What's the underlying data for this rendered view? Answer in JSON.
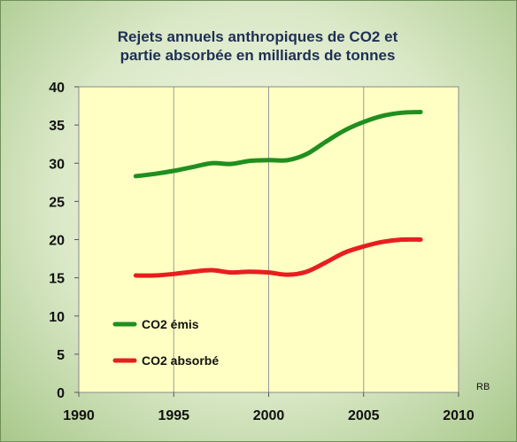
{
  "chart_data": {
    "type": "line",
    "title": [
      "Rejets annuels anthropiques  de CO2 et",
      "partie absorbée en milliards de tonnes"
    ],
    "xlabel": "",
    "ylabel": "",
    "xlim": [
      1990,
      2010
    ],
    "ylim": [
      0,
      40
    ],
    "x_ticks": [
      "1990",
      "1995",
      "2000",
      "2005",
      "2010"
    ],
    "y_ticks": [
      "0",
      "5",
      "10",
      "15",
      "20",
      "25",
      "30",
      "35",
      "40"
    ],
    "grid": "vertical",
    "legend_position": "lower-left",
    "x": [
      1993,
      1994,
      1995,
      1996,
      1997,
      1998,
      1999,
      2000,
      2001,
      2002,
      2003,
      2004,
      2005,
      2006,
      2007,
      2008
    ],
    "series": [
      {
        "name": "CO2 émis",
        "color": "#1f8f1f",
        "values": [
          28.3,
          28.6,
          29.0,
          29.5,
          30.0,
          29.9,
          30.3,
          30.4,
          30.4,
          31.2,
          32.8,
          34.3,
          35.4,
          36.2,
          36.6,
          36.7
        ]
      },
      {
        "name": "CO2 absorbé",
        "color": "#e81e1e",
        "values": [
          15.3,
          15.3,
          15.5,
          15.8,
          16.0,
          15.7,
          15.8,
          15.7,
          15.4,
          15.8,
          17.0,
          18.3,
          19.1,
          19.7,
          20.0,
          20.0
        ]
      }
    ],
    "annotation": "RB"
  }
}
